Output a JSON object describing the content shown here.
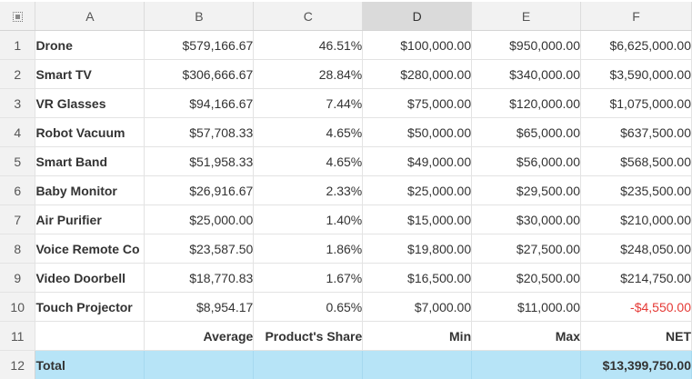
{
  "columns": [
    "A",
    "B",
    "C",
    "D",
    "E",
    "F"
  ],
  "rows": [
    {
      "n": "1",
      "a": "Drone",
      "b": "$579,166.67",
      "c": "46.51%",
      "d": "$100,000.00",
      "e": "$950,000.00",
      "f": "$6,625,000.00"
    },
    {
      "n": "2",
      "a": "Smart TV",
      "b": "$306,666.67",
      "c": "28.84%",
      "d": "$280,000.00",
      "e": "$340,000.00",
      "f": "$3,590,000.00"
    },
    {
      "n": "3",
      "a": "VR Glasses",
      "b": "$94,166.67",
      "c": "7.44%",
      "d": "$75,000.00",
      "e": "$120,000.00",
      "f": "$1,075,000.00"
    },
    {
      "n": "4",
      "a": "Robot Vacuum",
      "b": "$57,708.33",
      "c": "4.65%",
      "d": "$50,000.00",
      "e": "$65,000.00",
      "f": "$637,500.00"
    },
    {
      "n": "5",
      "a": "Smart Band",
      "b": "$51,958.33",
      "c": "4.65%",
      "d": "$49,000.00",
      "e": "$56,000.00",
      "f": "$568,500.00"
    },
    {
      "n": "6",
      "a": "Baby Monitor",
      "b": "$26,916.67",
      "c": "2.33%",
      "d": "$25,000.00",
      "e": "$29,500.00",
      "f": "$235,500.00"
    },
    {
      "n": "7",
      "a": "Air Purifier",
      "b": "$25,000.00",
      "c": "1.40%",
      "d": "$15,000.00",
      "e": "$30,000.00",
      "f": "$210,000.00"
    },
    {
      "n": "8",
      "a": "Voice Remote Co",
      "b": "$23,587.50",
      "c": "1.86%",
      "d": "$19,800.00",
      "e": "$27,500.00",
      "f": "$248,050.00"
    },
    {
      "n": "9",
      "a": "Video Doorbell",
      "b": "$18,770.83",
      "c": "1.67%",
      "d": "$16,500.00",
      "e": "$20,500.00",
      "f": "$214,750.00"
    },
    {
      "n": "10",
      "a": "Touch Projector",
      "b": "$8,954.17",
      "c": "0.65%",
      "d": "$7,000.00",
      "e": "$11,000.00",
      "f": "-$4,550.00"
    }
  ],
  "labels_row": {
    "n": "11",
    "a": "",
    "b": "Average",
    "c": "Product's Share",
    "d": "Min",
    "e": "Max",
    "f": "NET"
  },
  "total_row": {
    "n": "12",
    "a": "Total",
    "b": "",
    "c": "",
    "d": "",
    "e": "",
    "f": "$13,399,750.00"
  },
  "selected_column": "D",
  "colors": {
    "negative": "#e53935",
    "total_fill": "#b7e4f7",
    "header_fill": "#f2f2f2",
    "selected_header": "#dadada"
  }
}
